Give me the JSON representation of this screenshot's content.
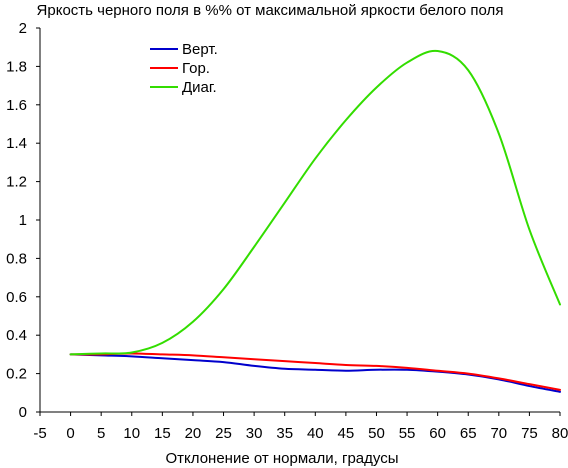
{
  "chart_data": {
    "type": "line",
    "title": "Яркость черного поля в %% от максимальной яркости белого поля",
    "xlabel": "Отклонение от нормали, градусы",
    "ylabel": "",
    "xlim": [
      -5,
      80
    ],
    "ylim": [
      0,
      2
    ],
    "x_ticks": [
      "-5",
      "0",
      "5",
      "10",
      "15",
      "20",
      "25",
      "30",
      "35",
      "40",
      "45",
      "50",
      "55",
      "60",
      "65",
      "70",
      "75",
      "80"
    ],
    "y_ticks": [
      "0",
      "0.2",
      "0.4",
      "0.6",
      "0.8",
      "1",
      "1.2",
      "1.4",
      "1.6",
      "1.8",
      "2"
    ],
    "grid": false,
    "legend_position": "top-left",
    "x": [
      0,
      5,
      10,
      15,
      20,
      25,
      30,
      35,
      40,
      45,
      50,
      55,
      60,
      65,
      70,
      75,
      80
    ],
    "series": [
      {
        "name": "Верт.",
        "color": "#0000cc",
        "values": [
          0.3,
          0.295,
          0.29,
          0.28,
          0.27,
          0.26,
          0.24,
          0.225,
          0.22,
          0.215,
          0.22,
          0.22,
          0.21,
          0.195,
          0.17,
          0.135,
          0.105
        ]
      },
      {
        "name": "Гор.",
        "color": "#ff0000",
        "values": [
          0.3,
          0.3,
          0.305,
          0.3,
          0.295,
          0.285,
          0.275,
          0.265,
          0.255,
          0.245,
          0.24,
          0.23,
          0.215,
          0.2,
          0.175,
          0.145,
          0.115
        ]
      },
      {
        "name": "Диаг.",
        "color": "#33dd00",
        "values": [
          0.3,
          0.305,
          0.31,
          0.36,
          0.47,
          0.64,
          0.86,
          1.09,
          1.32,
          1.52,
          1.69,
          1.82,
          1.88,
          1.78,
          1.45,
          0.95,
          0.56
        ]
      }
    ]
  }
}
